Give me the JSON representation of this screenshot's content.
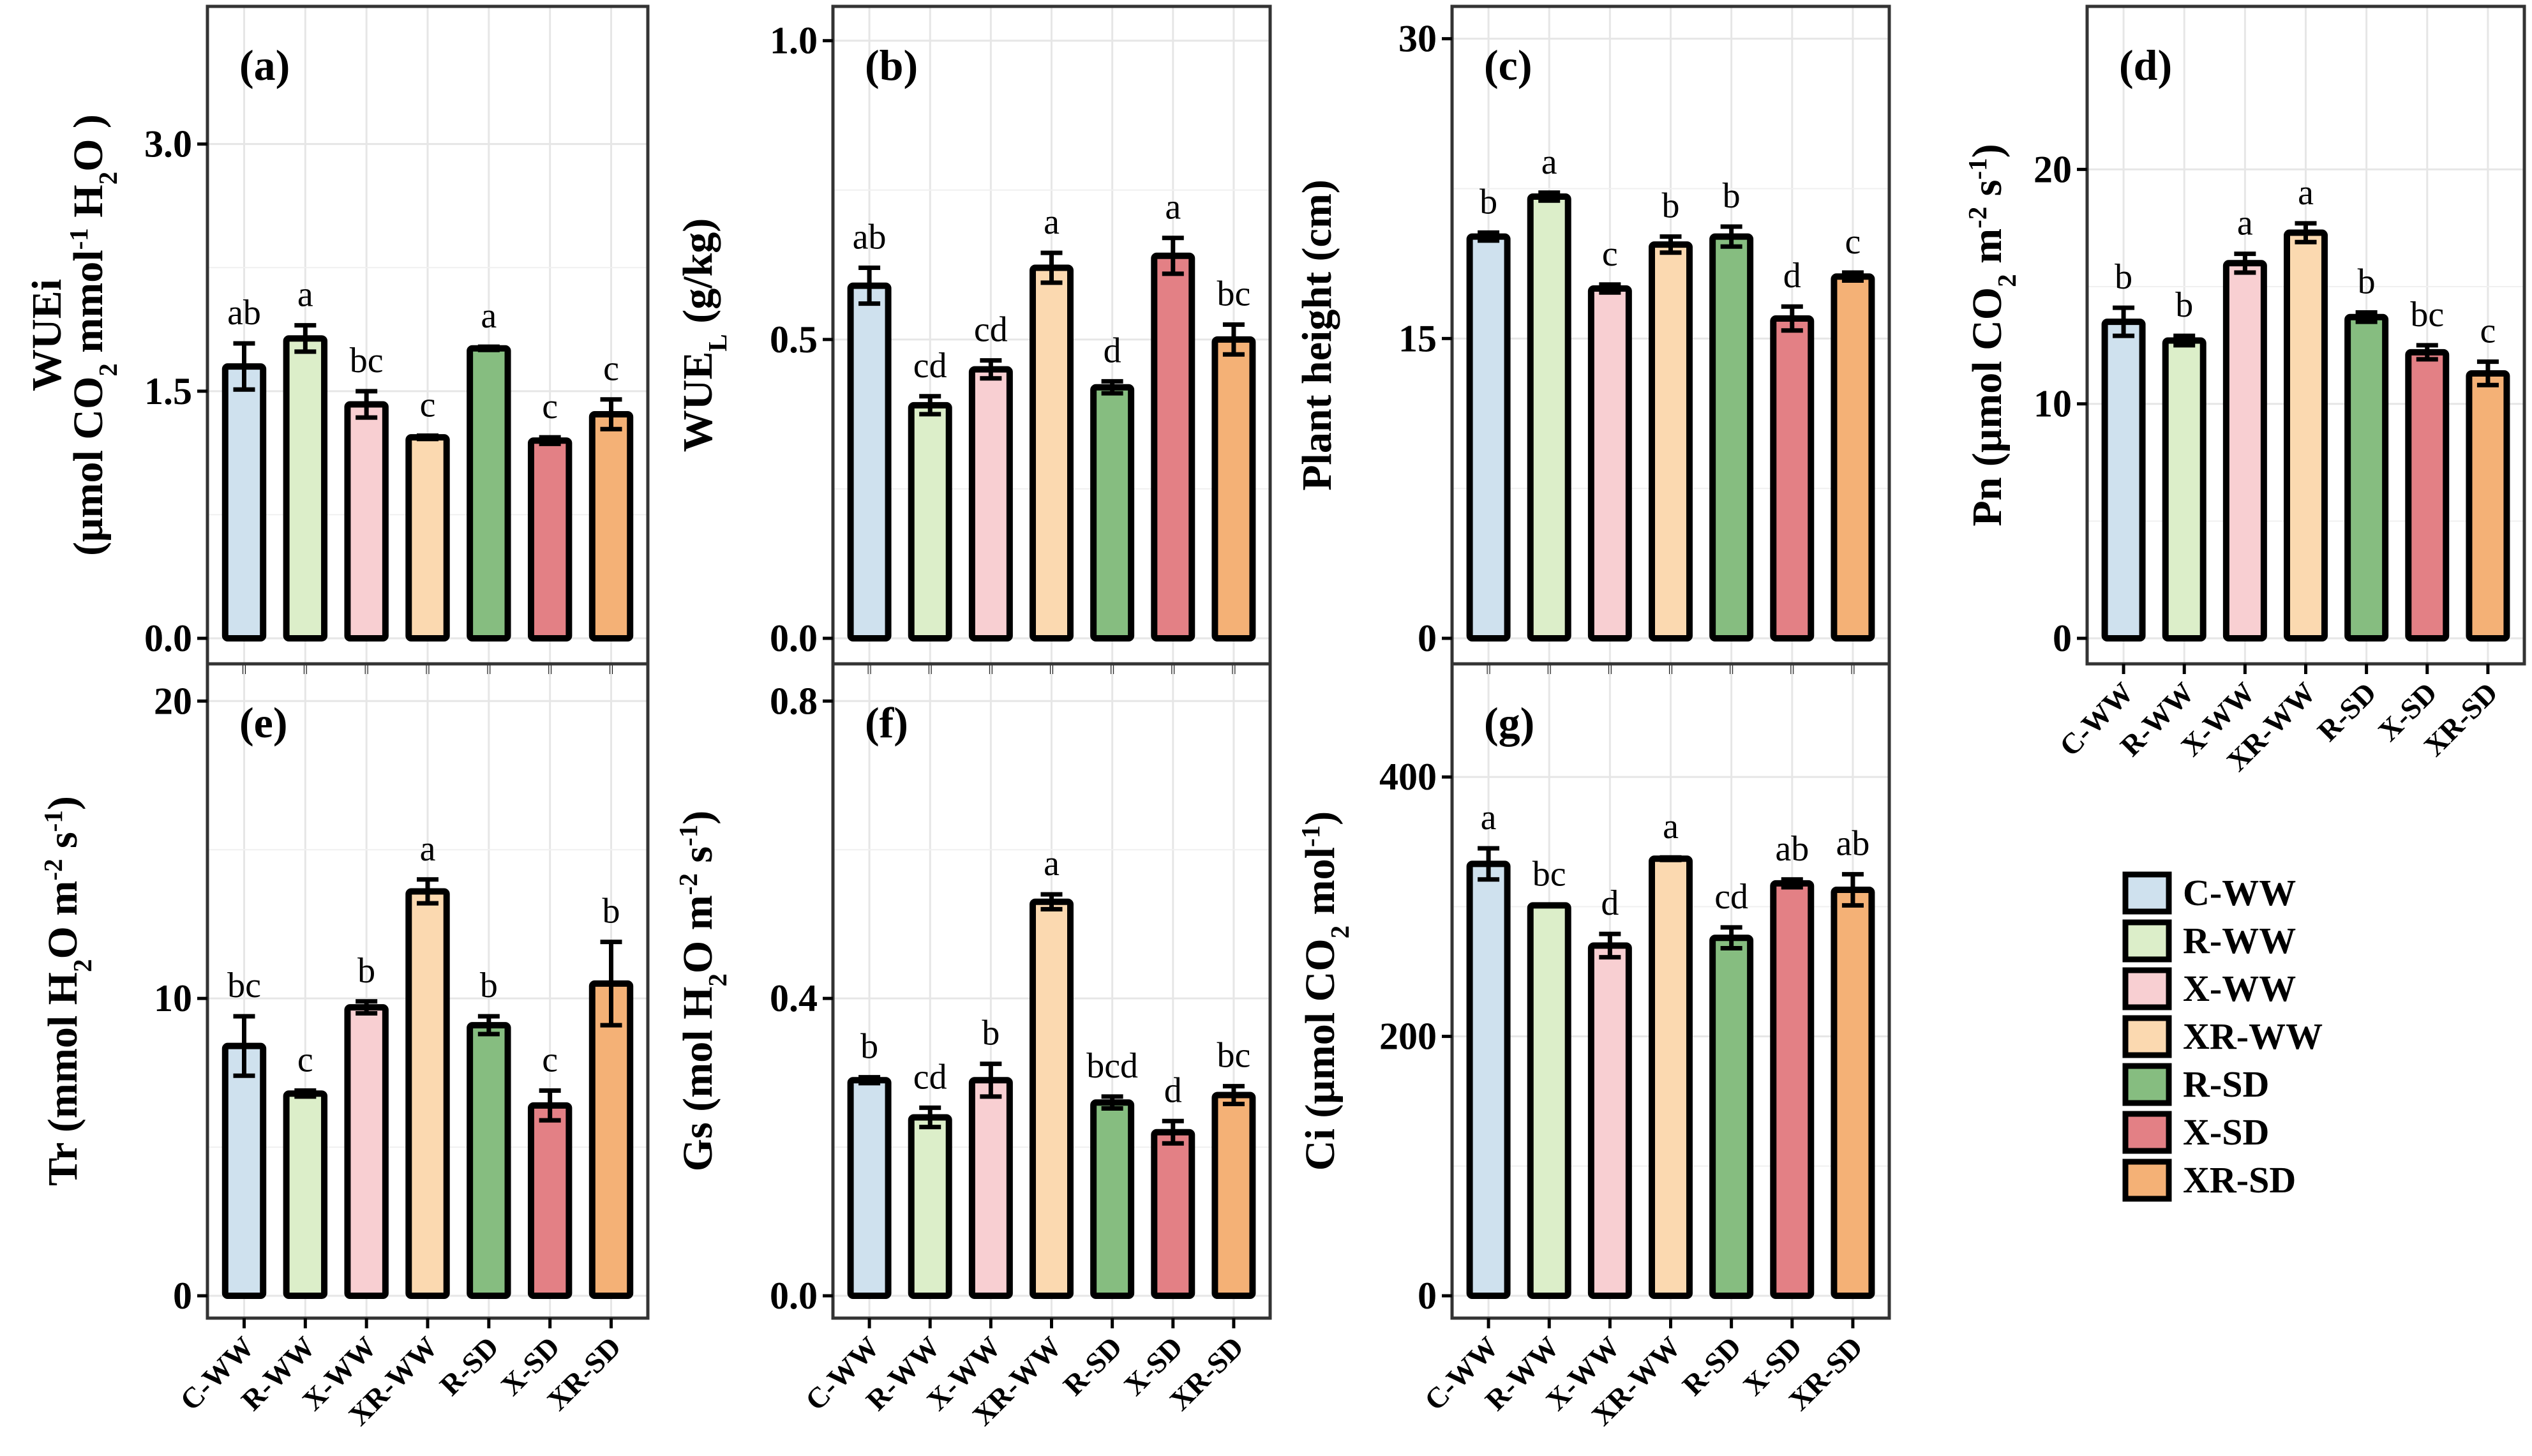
{
  "colors": {
    "C-WW": "#cfe1ee",
    "R-WW": "#dceec9",
    "X-WW": "#f8cfd2",
    "XR-WW": "#fbd9b0",
    "R-SD": "#86bd80",
    "X-SD": "#e38085",
    "XR-SD": "#f4b176"
  },
  "legend": {
    "items": [
      "C-WW",
      "R-WW",
      "X-WW",
      "XR-WW",
      "R-SD",
      "X-SD",
      "XR-SD"
    ]
  },
  "chart_data": [
    {
      "panel": "(a)",
      "type": "bar",
      "ylabel": "WUEi",
      "ylabel2": [
        "(μmol CO",
        "2",
        " mmol",
        "-1",
        " H",
        "2",
        "O )"
      ],
      "categories": [
        "C-WW",
        "R-WW",
        "X-WW",
        "XR-WW",
        "R-SD",
        "X-SD",
        "XR-SD"
      ],
      "values": [
        1.65,
        1.82,
        1.42,
        1.22,
        1.76,
        1.2,
        1.36
      ],
      "errors": [
        0.14,
        0.08,
        0.08,
        0.01,
        0.01,
        0.02,
        0.09
      ],
      "letters": [
        "ab",
        "a",
        "bc",
        "c",
        "a",
        "c",
        "c"
      ],
      "ylim": [
        0,
        3.7
      ],
      "yticks": [
        "0.0",
        "1.5",
        "3.0"
      ],
      "ytick_values": [
        0,
        1.5,
        3.0
      ]
    },
    {
      "panel": "(b)",
      "type": "bar",
      "ylabel": [
        "WUE",
        "L",
        "  (g/kg)"
      ],
      "categories": [
        "C-WW",
        "R-WW",
        "X-WW",
        "XR-WW",
        "R-SD",
        "X-SD",
        "XR-SD"
      ],
      "values": [
        0.59,
        0.39,
        0.45,
        0.62,
        0.42,
        0.64,
        0.5
      ],
      "errors": [
        0.03,
        0.015,
        0.015,
        0.025,
        0.01,
        0.03,
        0.025
      ],
      "letters": [
        "ab",
        "cd",
        "cd",
        "a",
        "d",
        "a",
        "bc"
      ],
      "ylim": [
        0,
        1.02
      ],
      "yticks": [
        "0.0",
        "0.5",
        "1.0"
      ],
      "ytick_values": [
        0,
        0.5,
        1.0
      ]
    },
    {
      "panel": "(c)",
      "type": "bar",
      "ylabel": "Plant height (cm)",
      "categories": [
        "C-WW",
        "R-WW",
        "X-WW",
        "XR-WW",
        "R-SD",
        "X-SD",
        "XR-SD"
      ],
      "values": [
        20.1,
        22.1,
        17.5,
        19.7,
        20.1,
        16,
        18.1
      ],
      "errors": [
        0.2,
        0.2,
        0.2,
        0.4,
        0.5,
        0.6,
        0.2
      ],
      "letters": [
        "b",
        "a",
        "c",
        "b",
        "b",
        "d",
        "c"
      ],
      "ylim": [
        0,
        30.5
      ],
      "yticks": [
        "0",
        "15",
        "30"
      ],
      "ytick_values": [
        0,
        15,
        30
      ]
    },
    {
      "panel": "(d)",
      "type": "bar",
      "ylabel": [
        "Pn (μmol CO",
        "2",
        " m",
        "-2",
        " s",
        "-1",
        ")"
      ],
      "categories": [
        "C-WW",
        "R-WW",
        "X-WW",
        "XR-WW",
        "R-SD",
        "X-SD",
        "XR-SD"
      ],
      "values": [
        13.5,
        12.7,
        16,
        17.3,
        13.7,
        12.2,
        11.3
      ],
      "errors": [
        0.6,
        0.2,
        0.4,
        0.4,
        0.2,
        0.3,
        0.5
      ],
      "letters": [
        "b",
        "b",
        "a",
        "a",
        "b",
        "bc",
        "c"
      ],
      "ylim": [
        0,
        26
      ],
      "yticks": [
        "0",
        "10",
        "20"
      ],
      "ytick_values": [
        0,
        10,
        20
      ]
    },
    {
      "panel": "(e)",
      "type": "bar",
      "ylabel": [
        "Tr (mmol H",
        "2",
        "O m",
        "-2",
        " s",
        "-1",
        ")"
      ],
      "categories": [
        "C-WW",
        "R-WW",
        "X-WW",
        "XR-WW",
        "R-SD",
        "X-SD",
        "XR-SD"
      ],
      "values": [
        8.4,
        6.8,
        9.7,
        13.6,
        9.1,
        6.4,
        10.5
      ],
      "errors": [
        1.0,
        0.1,
        0.2,
        0.4,
        0.3,
        0.5,
        1.4
      ],
      "letters": [
        "bc",
        "c",
        "b",
        "a",
        "b",
        "c",
        "b"
      ],
      "ylim": [
        0,
        20.5
      ],
      "yticks": [
        "0",
        "10",
        "20"
      ],
      "ytick_values": [
        0,
        10,
        20
      ]
    },
    {
      "panel": "(f)",
      "type": "bar",
      "ylabel": [
        "Gs (mol H",
        "2",
        "O m",
        "-2",
        " s",
        "-1",
        ")"
      ],
      "categories": [
        "C-WW",
        "R-WW",
        "X-WW",
        "XR-WW",
        "R-SD",
        "X-SD",
        "XR-SD"
      ],
      "values": [
        0.29,
        0.24,
        0.29,
        0.53,
        0.26,
        0.22,
        0.27
      ],
      "errors": [
        0.004,
        0.013,
        0.022,
        0.01,
        0.008,
        0.015,
        0.012
      ],
      "letters": [
        "b",
        "cd",
        "b",
        "a",
        "bcd",
        "d",
        "bc"
      ],
      "ylim": [
        0,
        0.82
      ],
      "yticks": [
        "0.0",
        "0.4",
        "0.8"
      ],
      "ytick_values": [
        0,
        0.4,
        0.8
      ]
    },
    {
      "panel": "(g)",
      "type": "bar",
      "ylabel": [
        "Ci (μmol CO",
        "2",
        " mol",
        "-1",
        ")"
      ],
      "categories": [
        "C-WW",
        "R-WW",
        "X-WW",
        "XR-WW",
        "R-SD",
        "X-SD",
        "XR-SD"
      ],
      "values": [
        333,
        301,
        270,
        337,
        276,
        318,
        313
      ],
      "errors": [
        12,
        0.5,
        9,
        1,
        8,
        3,
        12
      ],
      "letters": [
        "a",
        "bc",
        "d",
        "a",
        "cd",
        "ab",
        "ab"
      ],
      "ylim": [
        0,
        470
      ],
      "yticks": [
        "0",
        "200",
        "400"
      ],
      "ytick_values": [
        0,
        200,
        400
      ]
    }
  ]
}
